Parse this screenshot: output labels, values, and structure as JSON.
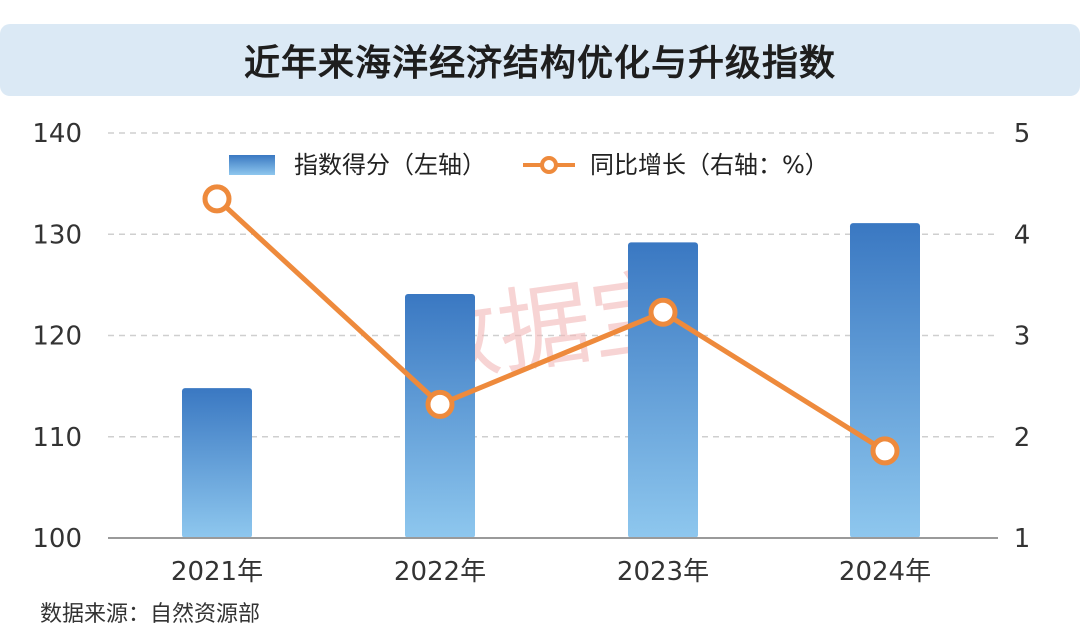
{
  "title": "近年来海洋经济结构优化与升级指数",
  "source": "数据来源：自然资源部",
  "watermark": "数据宝",
  "colors": {
    "bar_top": "#3a78c2",
    "bar_bottom": "#8ec7ee",
    "line": "#ee8a3c",
    "grid": "#cfcfcf",
    "axis_text": "#333333",
    "title_bg": "#dbe9f5",
    "watermark": "#f3b9b9"
  },
  "chart_data": {
    "type": "bar+line",
    "categories": [
      "2021年",
      "2022年",
      "2023年",
      "2024年"
    ],
    "series": [
      {
        "name": "指数得分（左轴）",
        "type": "bar",
        "axis": "left",
        "values": [
          114.8,
          124.1,
          129.2,
          131.1
        ]
      },
      {
        "name": "同比增长（右轴：%）",
        "type": "line",
        "axis": "right",
        "values": [
          4.35,
          2.32,
          3.23,
          1.86
        ]
      }
    ],
    "y_left": {
      "min": 100,
      "max": 140,
      "ticks": [
        100,
        110,
        120,
        130,
        140
      ]
    },
    "y_right": {
      "min": 1,
      "max": 5,
      "ticks": [
        1,
        2,
        3,
        4,
        5
      ]
    },
    "grid": true,
    "legend_position": "top-center"
  }
}
